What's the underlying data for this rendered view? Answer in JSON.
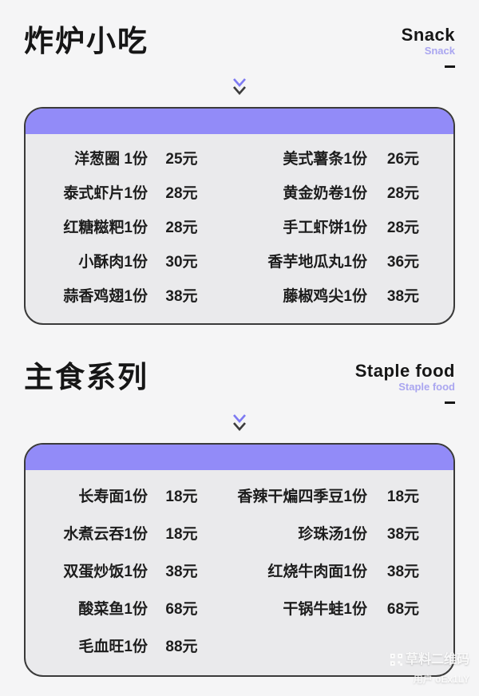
{
  "page": {
    "background": "#f5f5f6",
    "card_background": "#eaeaec",
    "accent_purple": "#928bf8",
    "subtitle_purple": "#aaa6f0",
    "border_color": "#3a3a3a",
    "text_color": "#1b1b1b"
  },
  "sections": [
    {
      "title": "炸炉小吃",
      "subtitle": "Snack",
      "subtitle_sub": "Snack",
      "rows": [
        {
          "l_name": "洋葱圈 1份",
          "l_price": "25元",
          "r_name": "美式薯条1份",
          "r_price": "26元"
        },
        {
          "l_name": "泰式虾片1份",
          "l_price": "28元",
          "r_name": "黄金奶卷1份",
          "r_price": "28元"
        },
        {
          "l_name": "红糖糍粑1份",
          "l_price": "28元",
          "r_name": "手工虾饼1份",
          "r_price": "28元"
        },
        {
          "l_name": "小酥肉1份",
          "l_price": "30元",
          "r_name": "香芋地瓜丸1份",
          "r_price": "36元"
        },
        {
          "l_name": "蒜香鸡翅1份",
          "l_price": "38元",
          "r_name": "藤椒鸡尖1份",
          "r_price": "38元"
        }
      ]
    },
    {
      "title": "主食系列",
      "subtitle": "Staple food",
      "subtitle_sub": "Staple food",
      "rows": [
        {
          "l_name": "长寿面1份",
          "l_price": "18元",
          "r_name": "香辣干煸四季豆1份",
          "r_price": "18元"
        },
        {
          "l_name": "水煮云吞1份",
          "l_price": "18元",
          "r_name": "珍珠汤1份",
          "r_price": "38元"
        },
        {
          "l_name": "双蛋炒饭1份",
          "l_price": "38元",
          "r_name": "红烧牛肉面1份",
          "r_price": "38元"
        },
        {
          "l_name": "酸菜鱼1份",
          "l_price": "68元",
          "r_name": "干锅牛蛙1份",
          "r_price": "68元"
        },
        {
          "l_name": "毛血旺1份",
          "l_price": "88元",
          "r_name": "",
          "r_price": ""
        }
      ]
    }
  ],
  "watermark": {
    "icon": "qr-code-icon",
    "brand": "草料二维码",
    "user": "用户 oEx1LY"
  }
}
